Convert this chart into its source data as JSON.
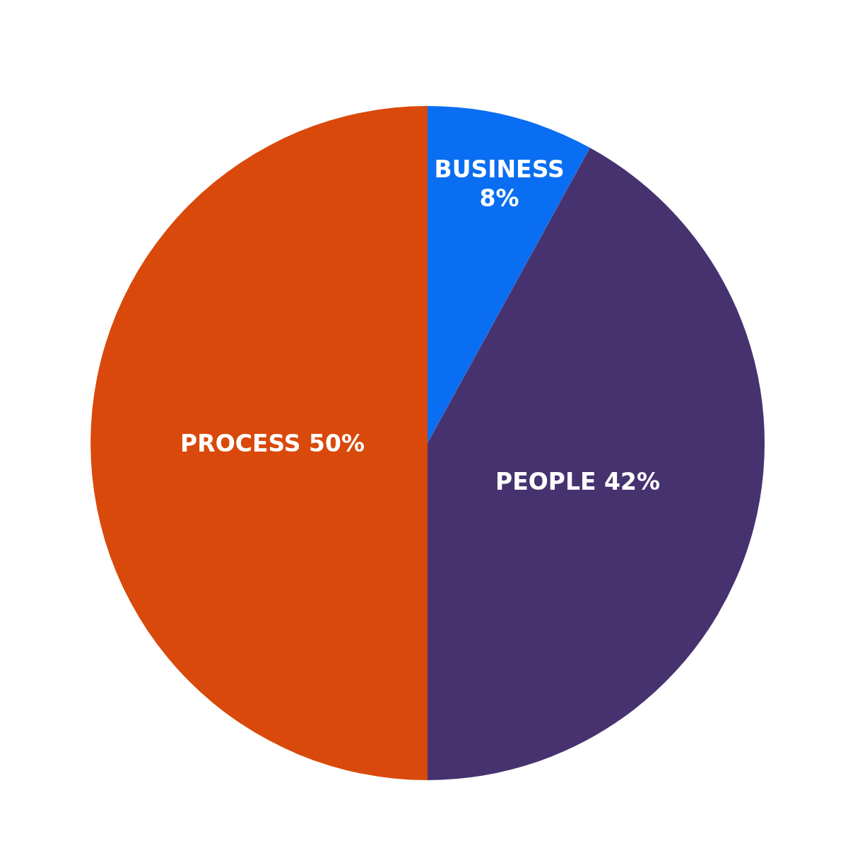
{
  "chart_data": {
    "type": "pie",
    "categories": [
      "BUSINESS",
      "PEOPLE",
      "PROCESS"
    ],
    "values": [
      8,
      42,
      50
    ],
    "value_labels": [
      "8%",
      "42%",
      "50%"
    ],
    "colors": [
      "#0a6ef2",
      "#473270",
      "#d9490b"
    ]
  }
}
